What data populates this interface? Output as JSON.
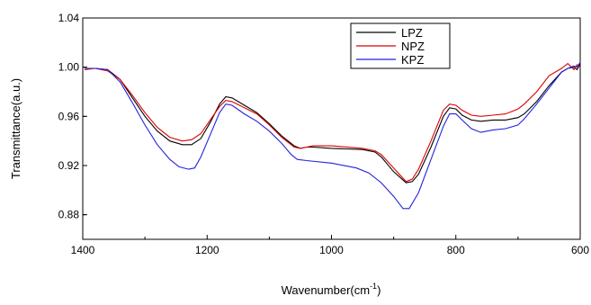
{
  "chart_data": {
    "type": "line",
    "xlabel": "Wavenumber(cm",
    "xlabel_sup": "-1",
    "xlabel_end": ")",
    "ylabel": "Transmittance(a.u.)",
    "xlim": [
      1400,
      600
    ],
    "ylim": [
      0.86,
      1.04
    ],
    "x_ticks": [
      1400,
      1200,
      1000,
      800,
      600
    ],
    "x_tick_labels": [
      "1400",
      "1200",
      "1000",
      "800",
      "600"
    ],
    "y_ticks": [
      0.88,
      0.92,
      0.96,
      1.0,
      1.04
    ],
    "y_tick_labels": [
      "0.88",
      "0.92",
      "0.96",
      "1.00",
      "1.04"
    ],
    "legend_position": "top-right",
    "series": [
      {
        "name": "LPZ",
        "color": "#000000",
        "points": [
          [
            1397,
            0.999
          ],
          [
            1380,
            0.999
          ],
          [
            1360,
            0.998
          ],
          [
            1340,
            0.99
          ],
          [
            1320,
            0.975
          ],
          [
            1300,
            0.96
          ],
          [
            1280,
            0.948
          ],
          [
            1260,
            0.94
          ],
          [
            1240,
            0.937
          ],
          [
            1225,
            0.937
          ],
          [
            1210,
            0.942
          ],
          [
            1195,
            0.955
          ],
          [
            1180,
            0.97
          ],
          [
            1170,
            0.976
          ],
          [
            1160,
            0.975
          ],
          [
            1140,
            0.969
          ],
          [
            1120,
            0.963
          ],
          [
            1100,
            0.954
          ],
          [
            1080,
            0.944
          ],
          [
            1060,
            0.936
          ],
          [
            1050,
            0.934
          ],
          [
            1040,
            0.935
          ],
          [
            1030,
            0.935
          ],
          [
            1000,
            0.934
          ],
          [
            950,
            0.933
          ],
          [
            930,
            0.931
          ],
          [
            920,
            0.927
          ],
          [
            900,
            0.915
          ],
          [
            880,
            0.906
          ],
          [
            870,
            0.907
          ],
          [
            860,
            0.913
          ],
          [
            840,
            0.935
          ],
          [
            820,
            0.96
          ],
          [
            810,
            0.967
          ],
          [
            800,
            0.966
          ],
          [
            790,
            0.961
          ],
          [
            775,
            0.957
          ],
          [
            760,
            0.956
          ],
          [
            740,
            0.957
          ],
          [
            720,
            0.957
          ],
          [
            700,
            0.959
          ],
          [
            690,
            0.962
          ],
          [
            670,
            0.972
          ],
          [
            650,
            0.985
          ],
          [
            630,
            0.996
          ],
          [
            620,
            0.999
          ],
          [
            610,
            1.0
          ],
          [
            605,
            0.998
          ],
          [
            600,
            1.003
          ]
        ]
      },
      {
        "name": "NPZ",
        "color": "#dd0000",
        "points": [
          [
            1397,
            0.998
          ],
          [
            1380,
            0.999
          ],
          [
            1360,
            0.997
          ],
          [
            1340,
            0.99
          ],
          [
            1320,
            0.977
          ],
          [
            1300,
            0.963
          ],
          [
            1280,
            0.951
          ],
          [
            1260,
            0.943
          ],
          [
            1240,
            0.94
          ],
          [
            1225,
            0.941
          ],
          [
            1210,
            0.946
          ],
          [
            1195,
            0.957
          ],
          [
            1180,
            0.968
          ],
          [
            1170,
            0.973
          ],
          [
            1160,
            0.972
          ],
          [
            1140,
            0.967
          ],
          [
            1120,
            0.962
          ],
          [
            1100,
            0.953
          ],
          [
            1080,
            0.943
          ],
          [
            1060,
            0.935
          ],
          [
            1050,
            0.934
          ],
          [
            1040,
            0.935
          ],
          [
            1030,
            0.936
          ],
          [
            1000,
            0.936
          ],
          [
            950,
            0.934
          ],
          [
            930,
            0.932
          ],
          [
            920,
            0.929
          ],
          [
            900,
            0.918
          ],
          [
            880,
            0.907
          ],
          [
            870,
            0.909
          ],
          [
            860,
            0.917
          ],
          [
            840,
            0.94
          ],
          [
            820,
            0.965
          ],
          [
            810,
            0.97
          ],
          [
            800,
            0.969
          ],
          [
            790,
            0.965
          ],
          [
            775,
            0.961
          ],
          [
            760,
            0.96
          ],
          [
            740,
            0.961
          ],
          [
            720,
            0.962
          ],
          [
            700,
            0.966
          ],
          [
            690,
            0.97
          ],
          [
            670,
            0.98
          ],
          [
            650,
            0.993
          ],
          [
            630,
            0.999
          ],
          [
            620,
            1.003
          ],
          [
            610,
            0.998
          ],
          [
            605,
            1.002
          ],
          [
            600,
            1.0
          ]
        ]
      },
      {
        "name": "KPZ",
        "color": "#2222dd",
        "points": [
          [
            1397,
            0.999
          ],
          [
            1380,
            0.999
          ],
          [
            1360,
            0.998
          ],
          [
            1340,
            0.988
          ],
          [
            1320,
            0.971
          ],
          [
            1300,
            0.953
          ],
          [
            1280,
            0.937
          ],
          [
            1260,
            0.925
          ],
          [
            1245,
            0.919
          ],
          [
            1230,
            0.917
          ],
          [
            1220,
            0.918
          ],
          [
            1210,
            0.927
          ],
          [
            1195,
            0.945
          ],
          [
            1180,
            0.963
          ],
          [
            1170,
            0.97
          ],
          [
            1160,
            0.969
          ],
          [
            1140,
            0.962
          ],
          [
            1120,
            0.956
          ],
          [
            1100,
            0.948
          ],
          [
            1080,
            0.938
          ],
          [
            1065,
            0.929
          ],
          [
            1055,
            0.925
          ],
          [
            1040,
            0.924
          ],
          [
            1000,
            0.922
          ],
          [
            960,
            0.918
          ],
          [
            940,
            0.914
          ],
          [
            920,
            0.906
          ],
          [
            900,
            0.895
          ],
          [
            885,
            0.885
          ],
          [
            875,
            0.885
          ],
          [
            860,
            0.898
          ],
          [
            840,
            0.925
          ],
          [
            820,
            0.952
          ],
          [
            810,
            0.962
          ],
          [
            800,
            0.962
          ],
          [
            790,
            0.957
          ],
          [
            775,
            0.95
          ],
          [
            760,
            0.947
          ],
          [
            740,
            0.949
          ],
          [
            720,
            0.95
          ],
          [
            700,
            0.953
          ],
          [
            690,
            0.958
          ],
          [
            670,
            0.97
          ],
          [
            650,
            0.983
          ],
          [
            630,
            0.996
          ],
          [
            620,
            0.999
          ],
          [
            610,
            1.001
          ],
          [
            605,
            1.0
          ],
          [
            600,
            1.004
          ]
        ]
      }
    ]
  }
}
